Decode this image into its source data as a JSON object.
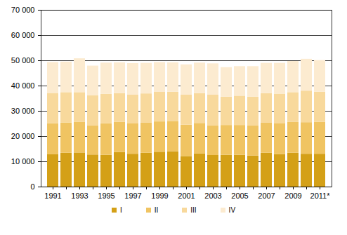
{
  "chart_data": {
    "type": "bar",
    "stacked": true,
    "grid": true,
    "legend": "bottom",
    "categories": [
      "1991",
      null,
      "1993",
      null,
      "1995",
      null,
      "1997",
      null,
      "1999",
      null,
      "2001",
      null,
      "2003",
      null,
      "2005",
      null,
      "2007",
      null,
      "2009",
      null,
      "2011*"
    ],
    "series": [
      {
        "name": "I",
        "color": "#d4a017",
        "values": [
          12800,
          13400,
          13500,
          12700,
          12600,
          13700,
          13000,
          13400,
          13800,
          14000,
          12100,
          13100,
          12500,
          12600,
          12600,
          12300,
          13400,
          12900,
          13400,
          13000,
          13000
        ]
      },
      {
        "name": "II",
        "color": "#f0c462",
        "values": [
          12300,
          12000,
          12200,
          11600,
          12500,
          11900,
          12000,
          11900,
          12000,
          12000,
          12400,
          12100,
          11700,
          11800,
          11800,
          11900,
          11900,
          12100,
          12300,
          12500,
          12600
        ]
      },
      {
        "name": "III",
        "color": "#f8d99c",
        "values": [
          12000,
          12000,
          11700,
          11800,
          11600,
          11400,
          11400,
          11600,
          11700,
          11600,
          11900,
          11800,
          12200,
          11200,
          11600,
          11400,
          11700,
          11800,
          11700,
          12500,
          12000
        ]
      },
      {
        "name": "IV",
        "color": "#fcebd0",
        "values": [
          12200,
          12100,
          13400,
          11800,
          12400,
          12200,
          12500,
          12100,
          11800,
          11600,
          12000,
          12100,
          12400,
          11700,
          11700,
          12100,
          12000,
          12200,
          12300,
          12600,
          12500
        ]
      }
    ],
    "ylim": [
      0,
      70000
    ],
    "yticks": [
      0,
      {
        "value": 10000,
        "label": "10 000"
      },
      {
        "value": 20000,
        "label": "20 000"
      },
      {
        "value": 30000,
        "label": "30 000"
      },
      {
        "value": 40000,
        "label": "40 000"
      },
      {
        "value": 50000,
        "label": "50 000"
      },
      {
        "value": 60000,
        "label": "60 000"
      },
      {
        "value": 70000,
        "label": "70 000"
      }
    ]
  }
}
